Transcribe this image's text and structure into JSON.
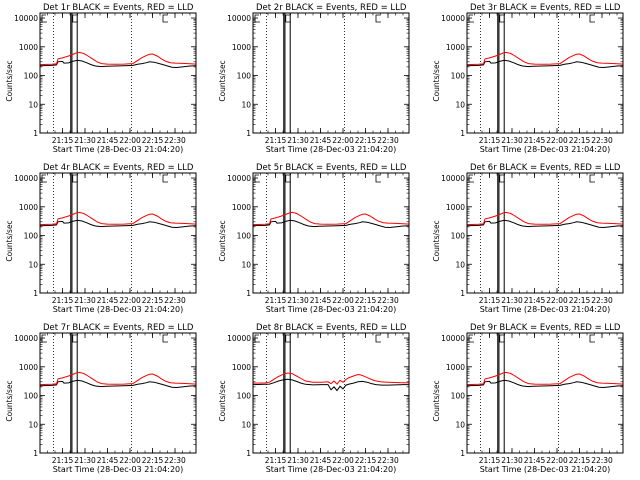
{
  "figure": {
    "xlabel": "Start Time (28-Dec-03 21:04:20)",
    "ylabel": "Counts/sec"
  },
  "chart_data": [
    {
      "type": "line",
      "title": "Det 1r BLACK = Events, RED = LLD",
      "has_data": true,
      "variant": "a",
      "series": [
        {
          "name": "Events",
          "color": "#000000"
        },
        {
          "name": "LLD",
          "color": "#ff0000"
        }
      ]
    },
    {
      "type": "line",
      "title": "Det 2r BLACK = Events, RED = LLD",
      "has_data": false,
      "variant": "none",
      "series": [
        {
          "name": "Events",
          "color": "#000000"
        },
        {
          "name": "LLD",
          "color": "#ff0000"
        }
      ]
    },
    {
      "type": "line",
      "title": "Det 3r BLACK = Events, RED = LLD",
      "has_data": true,
      "variant": "a",
      "series": [
        {
          "name": "Events",
          "color": "#000000"
        },
        {
          "name": "LLD",
          "color": "#ff0000"
        }
      ]
    },
    {
      "type": "line",
      "title": "Det 4r BLACK = Events, RED = LLD",
      "has_data": true,
      "variant": "a",
      "series": [
        {
          "name": "Events",
          "color": "#000000"
        },
        {
          "name": "LLD",
          "color": "#ff0000"
        }
      ]
    },
    {
      "type": "line",
      "title": "Det 5r BLACK = Events, RED = LLD",
      "has_data": true,
      "variant": "a",
      "series": [
        {
          "name": "Events",
          "color": "#000000"
        },
        {
          "name": "LLD",
          "color": "#ff0000"
        }
      ]
    },
    {
      "type": "line",
      "title": "Det 6r BLACK = Events, RED = LLD",
      "has_data": true,
      "variant": "a",
      "series": [
        {
          "name": "Events",
          "color": "#000000"
        },
        {
          "name": "LLD",
          "color": "#ff0000"
        }
      ]
    },
    {
      "type": "line",
      "title": "Det 7r BLACK = Events, RED = LLD",
      "has_data": true,
      "variant": "a",
      "series": [
        {
          "name": "Events",
          "color": "#000000"
        },
        {
          "name": "LLD",
          "color": "#ff0000"
        }
      ]
    },
    {
      "type": "line",
      "title": "Det 8r BLACK = Events, RED = LLD",
      "has_data": true,
      "variant": "b",
      "series": [
        {
          "name": "Events",
          "color": "#000000"
        },
        {
          "name": "LLD",
          "color": "#ff0000"
        }
      ]
    },
    {
      "type": "line",
      "title": "Det 9r BLACK = Events, RED = LLD",
      "has_data": true,
      "variant": "a",
      "series": [
        {
          "name": "Events",
          "color": "#000000"
        },
        {
          "name": "LLD",
          "color": "#ff0000"
        }
      ]
    }
  ],
  "axes": {
    "y_scale": "log",
    "ylim": [
      1,
      15000
    ],
    "y_tick_labels": [
      "1",
      "10",
      "100",
      "1000",
      "10000"
    ],
    "x_tick_labels": [
      "21:15",
      "21:30",
      "21:45",
      "22:00",
      "22:15",
      "22:30"
    ],
    "x_ticks_min": [
      15,
      30,
      45,
      60,
      75,
      90
    ],
    "xlim_min": [
      0,
      104
    ],
    "dotted_markers_min": [
      9,
      61
    ],
    "attenuator_markers_min": [
      20.5,
      21.3,
      24.8
    ]
  },
  "curves": {
    "a": {
      "events": [
        [
          0,
          220
        ],
        [
          8,
          225
        ],
        [
          11,
          235
        ],
        [
          12,
          300
        ],
        [
          15,
          310
        ],
        [
          16,
          270
        ],
        [
          19,
          275
        ],
        [
          22,
          315
        ],
        [
          25,
          340
        ],
        [
          28,
          320
        ],
        [
          31,
          280
        ],
        [
          34,
          240
        ],
        [
          37,
          215
        ],
        [
          41,
          205
        ],
        [
          44,
          210
        ],
        [
          50,
          215
        ],
        [
          56,
          220
        ],
        [
          62,
          225
        ],
        [
          65,
          245
        ],
        [
          68,
          260
        ],
        [
          71,
          280
        ],
        [
          73,
          300
        ],
        [
          76,
          290
        ],
        [
          79,
          265
        ],
        [
          82,
          240
        ],
        [
          85,
          215
        ],
        [
          88,
          195
        ],
        [
          91,
          190
        ],
        [
          95,
          200
        ],
        [
          100,
          215
        ],
        [
          104,
          220
        ]
      ],
      "lld": [
        [
          0,
          240
        ],
        [
          8,
          245
        ],
        [
          11,
          255
        ],
        [
          12,
          380
        ],
        [
          15,
          410
        ],
        [
          18,
          460
        ],
        [
          21,
          520
        ],
        [
          24,
          610
        ],
        [
          26,
          640
        ],
        [
          29,
          590
        ],
        [
          32,
          480
        ],
        [
          35,
          380
        ],
        [
          38,
          300
        ],
        [
          41,
          260
        ],
        [
          45,
          250
        ],
        [
          50,
          245
        ],
        [
          56,
          250
        ],
        [
          62,
          260
        ],
        [
          65,
          330
        ],
        [
          68,
          420
        ],
        [
          71,
          500
        ],
        [
          73,
          550
        ],
        [
          75,
          560
        ],
        [
          78,
          480
        ],
        [
          81,
          380
        ],
        [
          84,
          310
        ],
        [
          87,
          280
        ],
        [
          90,
          270
        ],
        [
          95,
          265
        ],
        [
          100,
          255
        ],
        [
          104,
          250
        ]
      ]
    },
    "b": {
      "events": [
        [
          0,
          240
        ],
        [
          8,
          245
        ],
        [
          11,
          250
        ],
        [
          14,
          280
        ],
        [
          17,
          320
        ],
        [
          20,
          350
        ],
        [
          23,
          370
        ],
        [
          26,
          350
        ],
        [
          29,
          310
        ],
        [
          32,
          270
        ],
        [
          35,
          245
        ],
        [
          40,
          235
        ],
        [
          46,
          240
        ],
        [
          50,
          240
        ],
        [
          52,
          160
        ],
        [
          54,
          200
        ],
        [
          56,
          150
        ],
        [
          58,
          210
        ],
        [
          60,
          170
        ],
        [
          62,
          230
        ],
        [
          64,
          250
        ],
        [
          67,
          270
        ],
        [
          70,
          300
        ],
        [
          73,
          310
        ],
        [
          76,
          290
        ],
        [
          79,
          260
        ],
        [
          82,
          240
        ],
        [
          86,
          230
        ],
        [
          90,
          230
        ],
        [
          95,
          235
        ],
        [
          100,
          240
        ],
        [
          104,
          240
        ]
      ],
      "lld": [
        [
          0,
          270
        ],
        [
          8,
          275
        ],
        [
          11,
          290
        ],
        [
          14,
          370
        ],
        [
          17,
          460
        ],
        [
          20,
          550
        ],
        [
          23,
          610
        ],
        [
          26,
          580
        ],
        [
          29,
          480
        ],
        [
          32,
          390
        ],
        [
          35,
          320
        ],
        [
          40,
          290
        ],
        [
          46,
          290
        ],
        [
          50,
          300
        ],
        [
          52,
          260
        ],
        [
          54,
          320
        ],
        [
          56,
          250
        ],
        [
          58,
          340
        ],
        [
          60,
          290
        ],
        [
          62,
          360
        ],
        [
          64,
          420
        ],
        [
          67,
          480
        ],
        [
          70,
          540
        ],
        [
          72,
          520
        ],
        [
          75,
          450
        ],
        [
          78,
          380
        ],
        [
          81,
          330
        ],
        [
          85,
          300
        ],
        [
          90,
          290
        ],
        [
          95,
          285
        ],
        [
          100,
          280
        ],
        [
          104,
          275
        ]
      ]
    }
  }
}
